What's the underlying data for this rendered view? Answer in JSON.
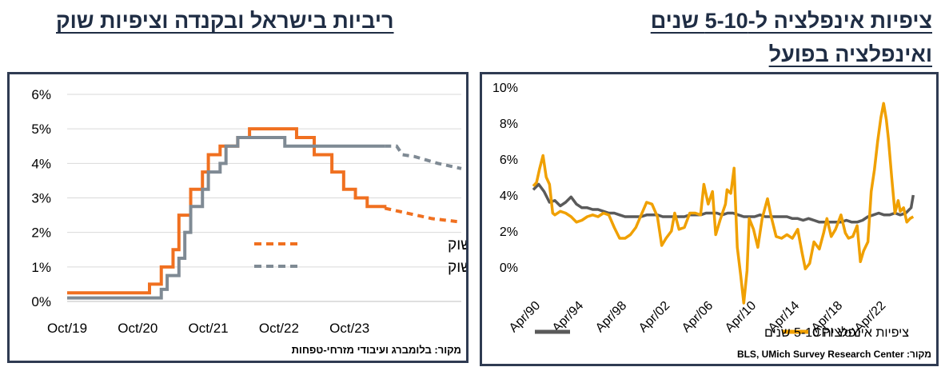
{
  "titles": {
    "left": "ריביות בישראל ובקנדה וציפיות שוק",
    "right_line1": "ציפיות אינפלציה ל-5-10 שנים",
    "right_line2": "ואינפלציה בפועל"
  },
  "sources": {
    "left": "מקור: בלומברג ועיבודי מזרחי-טפחות",
    "right": "מקור: BLS, UMich Survey Research Center"
  },
  "colors": {
    "orange": "#f07020",
    "gray": "#7f8a94",
    "dark": "#5a5a5a",
    "gold": "#f0a000",
    "frame": "#2f3b52"
  },
  "chart_data": [
    {
      "type": "line",
      "y_tick_labels": [
        "0%",
        "1%",
        "2%",
        "3%",
        "4%",
        "5%",
        "6%"
      ],
      "x_tick_labels": [
        "Oct/19",
        "Oct/20",
        "Oct/21",
        "Oct/22",
        "Oct/23"
      ],
      "ylim": [
        0,
        6
      ],
      "grid": true,
      "legend_position": "center-right",
      "series": [
        {
          "name": "קנדה - ציפיות שוק",
          "color": "#f07020",
          "solid": [
            [
              "2019-10",
              0.25
            ],
            [
              "2020-10",
              0.25
            ],
            [
              "2020-12",
              0.5
            ],
            [
              "2021-02",
              1.0
            ],
            [
              "2021-04",
              1.5
            ],
            [
              "2021-05",
              2.5
            ],
            [
              "2021-07",
              3.25
            ],
            [
              "2021-09",
              3.75
            ],
            [
              "2021-10",
              4.25
            ],
            [
              "2021-12",
              4.5
            ],
            [
              "2022-03",
              4.75
            ],
            [
              "2022-05",
              5.0
            ],
            [
              "2022-08",
              5.0
            ],
            [
              "2022-10",
              5.0
            ],
            [
              "2023-01",
              4.75
            ],
            [
              "2023-04",
              4.25
            ],
            [
              "2023-07",
              3.75
            ],
            [
              "2023-09",
              3.25
            ],
            [
              "2023-11",
              3.0
            ],
            [
              "2024-01",
              2.75
            ],
            [
              "2024-04",
              2.7
            ]
          ],
          "forecast": [
            [
              "2024-04",
              2.7
            ],
            [
              "2024-08",
              2.55
            ],
            [
              "2024-12",
              2.4
            ],
            [
              "2025-05",
              2.3
            ]
          ]
        },
        {
          "name": "ישראל - ציפיות שוק",
          "color": "#7f8a94",
          "solid": [
            [
              "2019-10",
              0.1
            ],
            [
              "2020-12",
              0.1
            ],
            [
              "2021-02",
              0.35
            ],
            [
              "2021-03",
              0.75
            ],
            [
              "2021-05",
              1.25
            ],
            [
              "2021-06",
              2.0
            ],
            [
              "2021-07",
              2.75
            ],
            [
              "2021-09",
              3.25
            ],
            [
              "2021-10",
              3.75
            ],
            [
              "2021-12",
              4.0
            ],
            [
              "2022-01",
              4.5
            ],
            [
              "2022-03",
              4.75
            ],
            [
              "2022-10",
              4.75
            ],
            [
              "2022-11",
              4.5
            ],
            [
              "2024-04",
              4.5
            ]
          ],
          "forecast": [
            [
              "2024-04",
              4.5
            ],
            [
              "2024-06",
              4.5
            ],
            [
              "2024-07",
              4.25
            ],
            [
              "2024-09",
              4.2
            ],
            [
              "2025-01",
              4.0
            ],
            [
              "2025-05",
              3.85
            ]
          ]
        }
      ]
    },
    {
      "type": "line",
      "y_tick_labels": [
        "0%",
        "2%",
        "4%",
        "6%",
        "8%",
        "10%"
      ],
      "x_tick_labels": [
        "Apr/90",
        "Apr/94",
        "Apr/98",
        "Apr/02",
        "Apr/06",
        "Apr/10",
        "Apr/14",
        "Apr/18",
        "Apr/22"
      ],
      "ylim": [
        -2,
        10
      ],
      "grid": false,
      "legend_position": "bottom",
      "series": [
        {
          "name": "ציפיות אינפלציה 5-10 שנים",
          "color": "#5a5a5a",
          "points": [
            [
              1990.0,
              4.3
            ],
            [
              1990.5,
              4.6
            ],
            [
              1991.0,
              4.2
            ],
            [
              1991.5,
              3.6
            ],
            [
              1992.0,
              3.7
            ],
            [
              1992.5,
              3.4
            ],
            [
              1993.0,
              3.6
            ],
            [
              1993.5,
              3.9
            ],
            [
              1994.0,
              3.5
            ],
            [
              1994.5,
              3.3
            ],
            [
              1995.0,
              3.3
            ],
            [
              1995.5,
              3.2
            ],
            [
              1996.0,
              3.2
            ],
            [
              1996.5,
              3.1
            ],
            [
              1997.0,
              3.0
            ],
            [
              1997.5,
              3.0
            ],
            [
              1998.0,
              2.9
            ],
            [
              1998.5,
              2.8
            ],
            [
              1999.0,
              2.8
            ],
            [
              1999.5,
              2.8
            ],
            [
              2000.0,
              2.8
            ],
            [
              2000.5,
              2.9
            ],
            [
              2001.0,
              2.9
            ],
            [
              2001.5,
              2.9
            ],
            [
              2002.0,
              2.8
            ],
            [
              2002.5,
              2.8
            ],
            [
              2003.0,
              2.8
            ],
            [
              2003.5,
              2.8
            ],
            [
              2004.0,
              2.8
            ],
            [
              2004.5,
              2.9
            ],
            [
              2005.0,
              2.9
            ],
            [
              2005.5,
              2.9
            ],
            [
              2006.0,
              3.0
            ],
            [
              2006.5,
              3.0
            ],
            [
              2007.0,
              3.0
            ],
            [
              2007.5,
              2.9
            ],
            [
              2008.0,
              3.0
            ],
            [
              2008.5,
              3.0
            ],
            [
              2009.0,
              2.9
            ],
            [
              2009.5,
              2.8
            ],
            [
              2010.0,
              2.8
            ],
            [
              2010.5,
              2.8
            ],
            [
              2011.0,
              2.9
            ],
            [
              2011.5,
              2.8
            ],
            [
              2012.0,
              2.8
            ],
            [
              2012.5,
              2.8
            ],
            [
              2013.0,
              2.8
            ],
            [
              2013.5,
              2.8
            ],
            [
              2014.0,
              2.7
            ],
            [
              2014.5,
              2.7
            ],
            [
              2015.0,
              2.6
            ],
            [
              2015.5,
              2.7
            ],
            [
              2016.0,
              2.6
            ],
            [
              2016.5,
              2.5
            ],
            [
              2017.0,
              2.5
            ],
            [
              2017.5,
              2.5
            ],
            [
              2018.0,
              2.5
            ],
            [
              2018.5,
              2.5
            ],
            [
              2019.0,
              2.6
            ],
            [
              2019.5,
              2.5
            ],
            [
              2020.0,
              2.5
            ],
            [
              2020.5,
              2.6
            ],
            [
              2021.0,
              2.8
            ],
            [
              2021.5,
              2.9
            ],
            [
              2022.0,
              3.0
            ],
            [
              2022.5,
              2.9
            ],
            [
              2023.0,
              2.9
            ],
            [
              2023.5,
              3.0
            ],
            [
              2024.0,
              2.9
            ],
            [
              2024.5,
              3.0
            ],
            [
              2025.0,
              3.3
            ],
            [
              2025.2,
              4.0
            ]
          ]
        },
        {
          "name": "CPI YoY",
          "color": "#f0a000",
          "points": [
            [
              1990.0,
              4.5
            ],
            [
              1990.3,
              4.7
            ],
            [
              1990.6,
              5.5
            ],
            [
              1990.9,
              6.2
            ],
            [
              1991.2,
              5.0
            ],
            [
              1991.5,
              4.6
            ],
            [
              1991.8,
              3.0
            ],
            [
              1992.0,
              2.9
            ],
            [
              1992.5,
              3.1
            ],
            [
              1993.0,
              3.0
            ],
            [
              1993.5,
              2.8
            ],
            [
              1994.0,
              2.5
            ],
            [
              1994.5,
              2.6
            ],
            [
              1995.0,
              2.8
            ],
            [
              1995.5,
              2.9
            ],
            [
              1996.0,
              2.8
            ],
            [
              1996.5,
              3.0
            ],
            [
              1997.0,
              2.9
            ],
            [
              1997.5,
              2.2
            ],
            [
              1998.0,
              1.6
            ],
            [
              1998.5,
              1.6
            ],
            [
              1999.0,
              1.8
            ],
            [
              1999.5,
              2.2
            ],
            [
              2000.0,
              2.9
            ],
            [
              2000.5,
              3.6
            ],
            [
              2001.0,
              3.5
            ],
            [
              2001.5,
              2.8
            ],
            [
              2001.9,
              1.2
            ],
            [
              2002.3,
              1.6
            ],
            [
              2002.8,
              2.0
            ],
            [
              2003.1,
              3.0
            ],
            [
              2003.5,
              2.1
            ],
            [
              2004.0,
              2.2
            ],
            [
              2004.5,
              3.0
            ],
            [
              2005.0,
              3.0
            ],
            [
              2005.5,
              2.9
            ],
            [
              2005.8,
              4.6
            ],
            [
              2006.2,
              3.5
            ],
            [
              2006.6,
              4.2
            ],
            [
              2006.9,
              1.8
            ],
            [
              2007.3,
              2.6
            ],
            [
              2007.8,
              3.5
            ],
            [
              2007.95,
              4.3
            ],
            [
              2008.3,
              4.1
            ],
            [
              2008.6,
              5.5
            ],
            [
              2008.9,
              1.1
            ],
            [
              2009.2,
              -0.4
            ],
            [
              2009.5,
              -2.0
            ],
            [
              2009.8,
              -0.2
            ],
            [
              2010.0,
              2.7
            ],
            [
              2010.4,
              2.1
            ],
            [
              2010.8,
              1.1
            ],
            [
              2011.2,
              2.7
            ],
            [
              2011.7,
              3.8
            ],
            [
              2012.0,
              2.9
            ],
            [
              2012.5,
              1.7
            ],
            [
              2013.0,
              1.6
            ],
            [
              2013.5,
              1.8
            ],
            [
              2014.0,
              1.6
            ],
            [
              2014.5,
              2.1
            ],
            [
              2014.9,
              0.8
            ],
            [
              2015.2,
              -0.1
            ],
            [
              2015.6,
              0.2
            ],
            [
              2016.0,
              1.4
            ],
            [
              2016.5,
              1.0
            ],
            [
              2016.9,
              1.9
            ],
            [
              2017.2,
              2.7
            ],
            [
              2017.6,
              1.7
            ],
            [
              2018.0,
              2.1
            ],
            [
              2018.5,
              2.9
            ],
            [
              2018.9,
              1.9
            ],
            [
              2019.2,
              1.6
            ],
            [
              2019.6,
              1.7
            ],
            [
              2020.0,
              2.3
            ],
            [
              2020.3,
              0.3
            ],
            [
              2020.6,
              0.9
            ],
            [
              2021.0,
              1.4
            ],
            [
              2021.3,
              4.2
            ],
            [
              2021.6,
              5.4
            ],
            [
              2021.9,
              7.0
            ],
            [
              2022.2,
              8.3
            ],
            [
              2022.45,
              9.1
            ],
            [
              2022.7,
              8.2
            ],
            [
              2022.9,
              7.1
            ],
            [
              2023.2,
              5.0
            ],
            [
              2023.5,
              3.0
            ],
            [
              2023.8,
              3.7
            ],
            [
              2024.0,
              3.1
            ],
            [
              2024.3,
              3.3
            ],
            [
              2024.6,
              2.5
            ],
            [
              2024.9,
              2.7
            ],
            [
              2025.2,
              2.8
            ]
          ]
        }
      ]
    }
  ]
}
